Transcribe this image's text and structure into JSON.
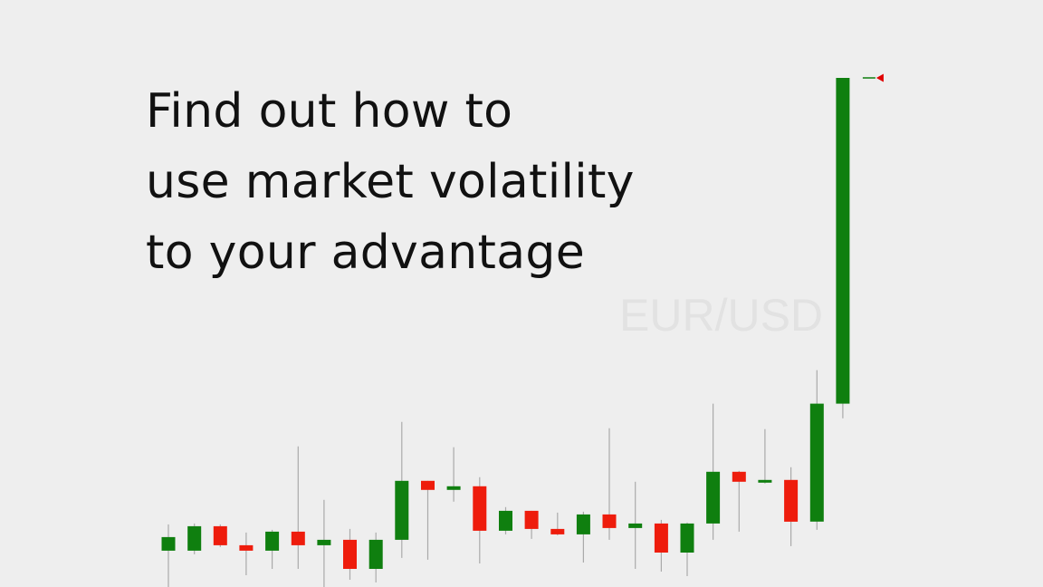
{
  "headline": {
    "line1": "Find out how to",
    "line2": "use market volatility",
    "line3": "to your advantage"
  },
  "chart_data": {
    "type": "candlestick",
    "watermark": "EUR/USD",
    "colors": {
      "up": "#0f7f0f",
      "down": "#ee1c0c",
      "wick": "#aaaaaa",
      "price_marker": "#e00000"
    },
    "grid": false,
    "ylim": [
      0,
      560
    ],
    "candles": [
      {
        "open": 40.0,
        "high": 69.0,
        "low": 0.0,
        "close": 55.0
      },
      {
        "open": 40.0,
        "high": 70.0,
        "low": 36.0,
        "close": 67.0
      },
      {
        "open": 67.0,
        "high": 69.0,
        "low": 44.0,
        "close": 46.0
      },
      {
        "open": 46.0,
        "high": 60.0,
        "low": 13.0,
        "close": 40.0
      },
      {
        "open": 40.0,
        "high": 63.0,
        "low": 20.0,
        "close": 61.0
      },
      {
        "open": 61.0,
        "high": 155.0,
        "low": 20.0,
        "close": 46.0
      },
      {
        "open": 46.0,
        "high": 96.0,
        "low": 0.0,
        "close": 52.0
      },
      {
        "open": 52.0,
        "high": 64.0,
        "low": 8.0,
        "close": 20.0
      },
      {
        "open": 20.0,
        "high": 60.0,
        "low": 5.0,
        "close": 52.0
      },
      {
        "open": 52.0,
        "high": 182.0,
        "low": 32.0,
        "close": 117.0
      },
      {
        "open": 117.0,
        "high": 117.0,
        "low": 30.0,
        "close": 107.0
      },
      {
        "open": 107.0,
        "high": 154.0,
        "low": 94.0,
        "close": 111.0
      },
      {
        "open": 111.0,
        "high": 121.0,
        "low": 26.0,
        "close": 62.0
      },
      {
        "open": 62.0,
        "high": 88.0,
        "low": 58.0,
        "close": 84.0
      },
      {
        "open": 84.0,
        "high": 84.0,
        "low": 53.0,
        "close": 64.0
      },
      {
        "open": 64.0,
        "high": 82.0,
        "low": 57.0,
        "close": 58.0
      },
      {
        "open": 58.0,
        "high": 83.0,
        "low": 27.0,
        "close": 80.0
      },
      {
        "open": 80.0,
        "high": 175.0,
        "low": 52.0,
        "close": 65.0
      },
      {
        "open": 65.0,
        "high": 116.0,
        "low": 20.0,
        "close": 70.0
      },
      {
        "open": 70.0,
        "high": 74.0,
        "low": 17.0,
        "close": 38.0
      },
      {
        "open": 38.0,
        "high": 71.0,
        "low": 12.0,
        "close": 70.0
      },
      {
        "open": 70.0,
        "high": 202.0,
        "low": 52.0,
        "close": 127.0
      },
      {
        "open": 127.0,
        "high": 128.0,
        "low": 61.0,
        "close": 116.0
      },
      {
        "open": 116.0,
        "high": 174.0,
        "low": 114.0,
        "close": 118.0
      },
      {
        "open": 118.0,
        "high": 132.0,
        "low": 45.0,
        "close": 72.0
      },
      {
        "open": 72.0,
        "high": 239.0,
        "low": 63.0,
        "close": 202.0
      },
      {
        "open": 202.0,
        "high": 561.0,
        "low": 186.0,
        "close": 561.0
      }
    ]
  }
}
